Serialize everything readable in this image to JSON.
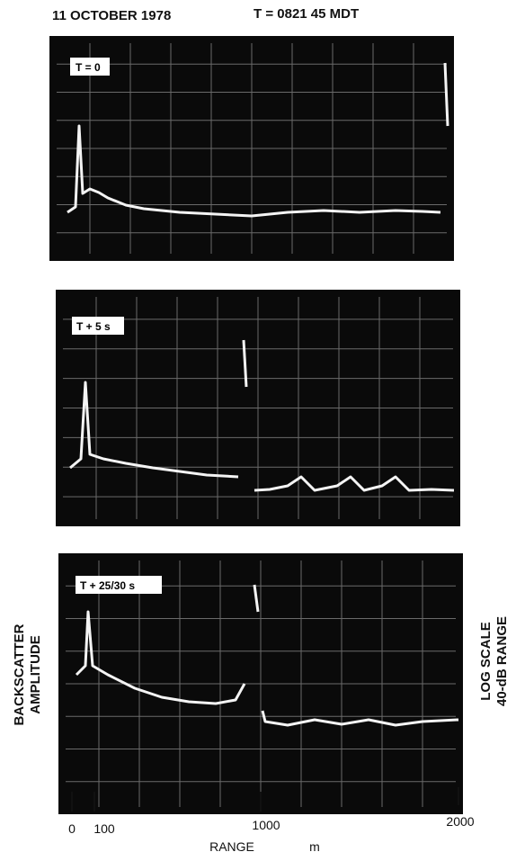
{
  "header": {
    "date": "11 OCTOBER 1978",
    "time": "T = 0821 45 MDT"
  },
  "panels": [
    {
      "label": "T = 0"
    },
    {
      "label": "T + 5 s"
    },
    {
      "label": "T + 25/30 s"
    }
  ],
  "left_label": [
    "BACKSCATTER",
    "AMPLITUDE"
  ],
  "right_label": [
    "LOG SCALE",
    "40-dB RANGE"
  ],
  "x_axis": {
    "ticks": [
      "0",
      "100",
      "1000",
      "2000"
    ],
    "label": "RANGE",
    "unit": "m"
  }
}
